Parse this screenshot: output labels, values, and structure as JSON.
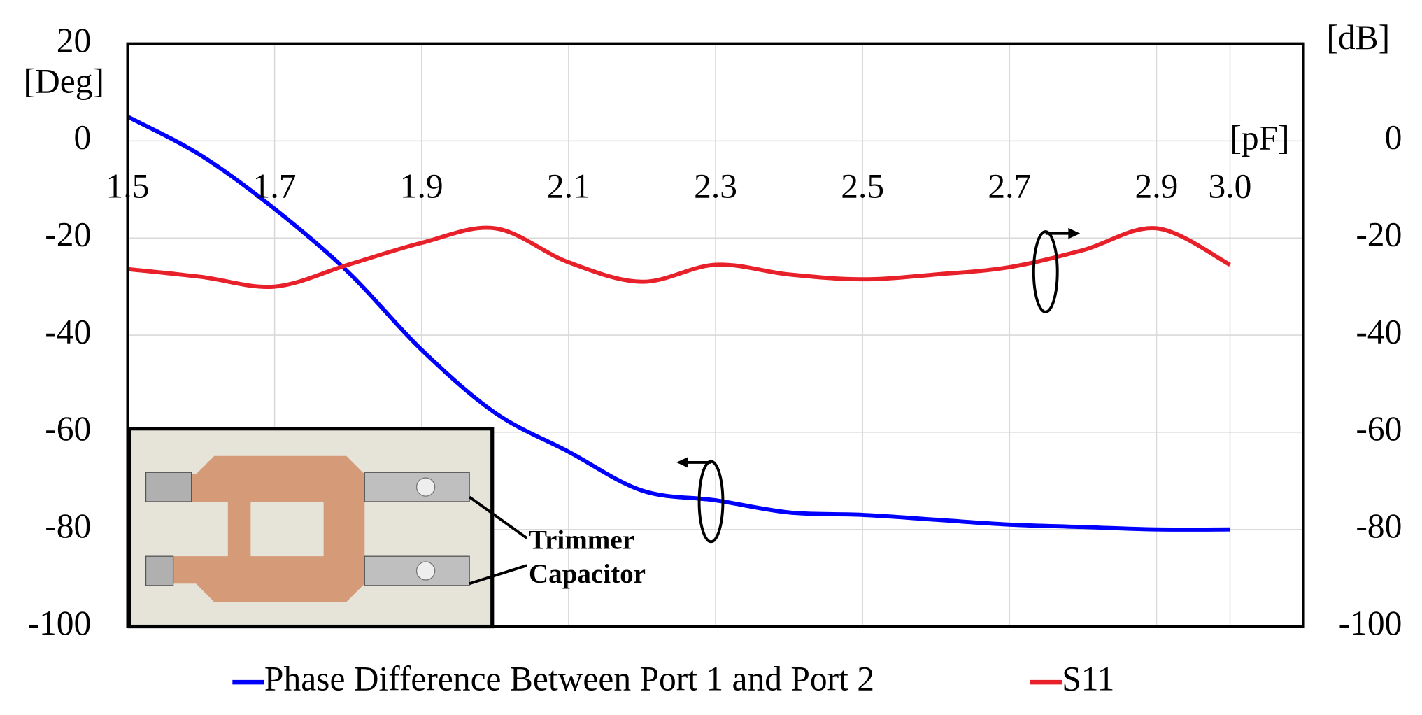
{
  "chart_data": {
    "type": "line",
    "xlabel": "[pF]",
    "ylabel": "[Deg]",
    "y2label": "[dB]",
    "x": [
      1.5,
      1.6,
      1.7,
      1.8,
      1.9,
      2.0,
      2.1,
      2.2,
      2.3,
      2.4,
      2.5,
      2.6,
      2.7,
      2.8,
      2.9,
      3.0
    ],
    "series": [
      {
        "name": "Phase Difference Between Port 1 and Port 2",
        "color": "#0000ff",
        "values": [
          5,
          -3,
          -14,
          -27,
          -43,
          -56,
          -64,
          -72,
          -74,
          -76.5,
          -77,
          -78,
          -79,
          -79.5,
          -80,
          -80
        ]
      },
      {
        "name": "S11",
        "color": "#e8202a",
        "axis": "y2",
        "values": [
          -26.4,
          -28,
          -30,
          -25.5,
          -21,
          -18,
          -25,
          -29,
          -25.5,
          -27.5,
          -28.5,
          -27.5,
          -26,
          -22.5,
          -18,
          -25.5
        ]
      }
    ],
    "xlim": [
      1.5,
      3.1
    ],
    "xticks": [
      1.5,
      1.7,
      1.9,
      2.1,
      2.3,
      2.5,
      2.7,
      2.9,
      {
        "value": 3.0,
        "label": "3.0"
      }
    ],
    "ylim": [
      -100,
      20
    ],
    "yticks": [
      -100,
      -80,
      -60,
      -40,
      -20,
      0,
      20
    ],
    "y2lim": [
      -100,
      20
    ],
    "y2ticks": [
      -100,
      -80,
      -60,
      -40,
      -20,
      0
    ],
    "grid": true,
    "legend": "bottom",
    "annotations": [
      "Trimmer",
      "Capacitor"
    ]
  }
}
